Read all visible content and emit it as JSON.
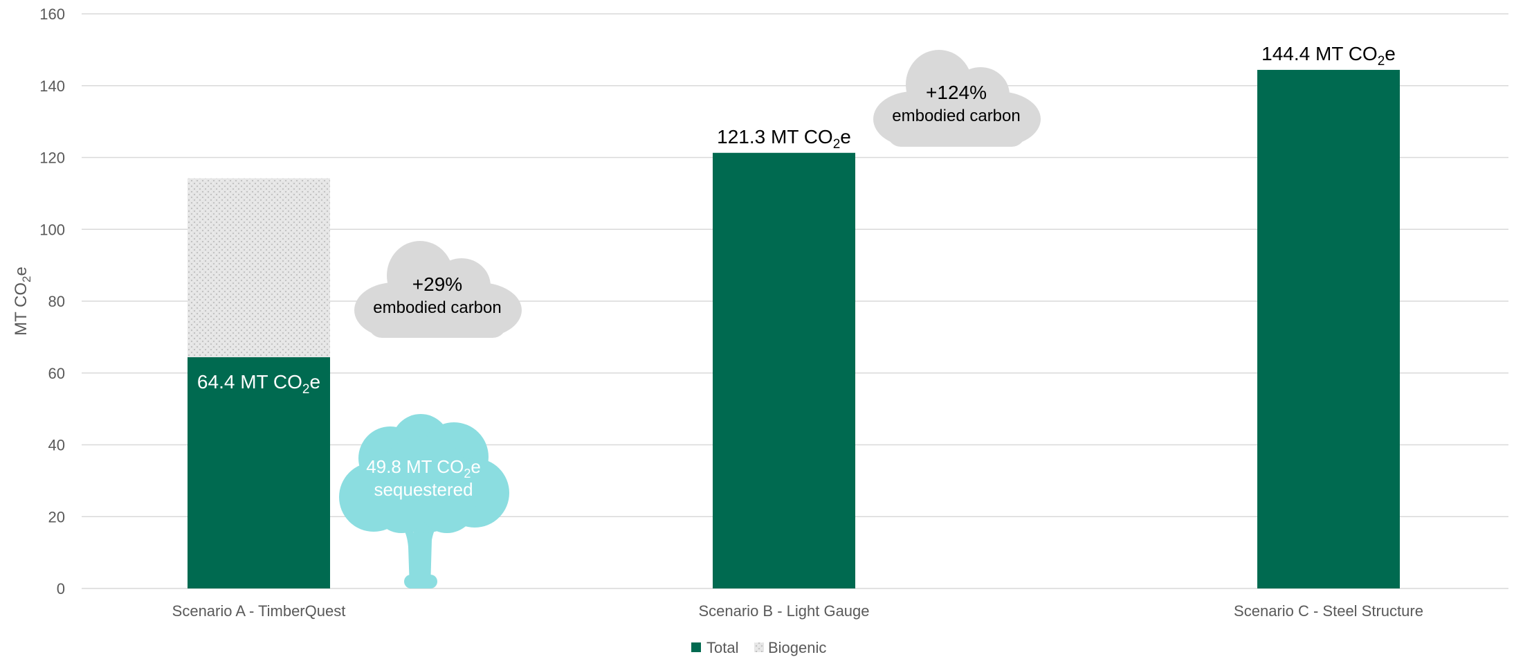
{
  "colors": {
    "total": "#006a50",
    "biogenic_bg": "#e4e4e4",
    "grid": "#d9d9d9",
    "cloud": "#d9d9d9",
    "tree": "#8bdde0",
    "text": "#595959"
  },
  "chart_data": {
    "type": "bar",
    "ylabel": "MT CO2e",
    "ylim": [
      0,
      160
    ],
    "yticks": [
      0,
      20,
      40,
      60,
      80,
      100,
      120,
      140,
      160
    ],
    "grid": true,
    "legend_position": "bottom",
    "categories": [
      "Scenario A - TimberQuest",
      "Scenario B - Light Gauge",
      "Scenario C - Steel Structure"
    ],
    "series": [
      {
        "name": "Total",
        "values": [
          64.4,
          121.3,
          144.4
        ]
      },
      {
        "name": "Biogenic",
        "values": [
          49.8,
          0,
          0
        ]
      }
    ],
    "data_labels": [
      {
        "main": "64.4 MT CO",
        "sub": "2",
        "tail": "e"
      },
      {
        "main": "121.3 MT CO",
        "sub": "2",
        "tail": "e"
      },
      {
        "main": "144.4 MT CO",
        "sub": "2",
        "tail": "e"
      }
    ],
    "annotations": {
      "cloud_a": {
        "pct": "+29%",
        "text": "embodied carbon"
      },
      "cloud_b": {
        "pct": "+124%",
        "text": "embodied carbon"
      },
      "tree": {
        "main": "49.8 MT CO",
        "sub": "2",
        "tail": "e",
        "text": "sequestered"
      }
    }
  }
}
